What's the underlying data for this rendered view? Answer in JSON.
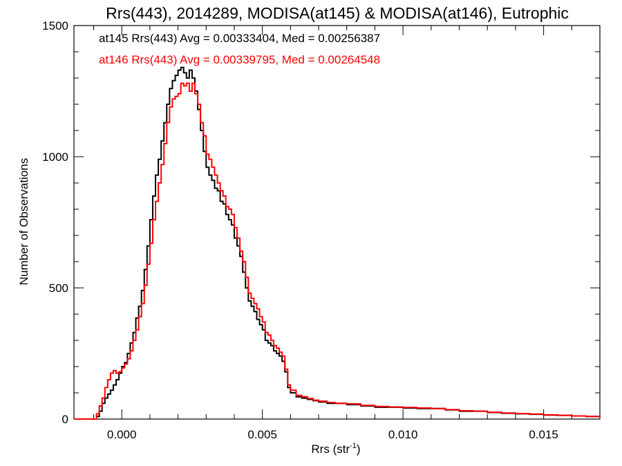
{
  "chart_data": {
    "type": "line",
    "style": "histogram-step",
    "title": "Rrs(443), 2014289, MODISA(at145) & MODISA(at146), Eutrophic",
    "xlabel": "Rrs (str",
    "xlabel_sup": "-1",
    "xlabel_close": ")",
    "ylabel": "Number of Observations",
    "xlim": [
      -0.0017,
      0.017
    ],
    "ylim": [
      0,
      1500
    ],
    "x_ticks": [
      0.0,
      0.005,
      0.01,
      0.015
    ],
    "x_tick_labels": [
      "0.000",
      "0.005",
      "0.010",
      "0.015"
    ],
    "x_minor_step": 0.001,
    "y_ticks": [
      0,
      500,
      1000,
      1500
    ],
    "y_tick_labels": [
      "0",
      "500",
      "1000",
      "1500"
    ],
    "y_minor_step": 100,
    "grid": false,
    "legend_placement": "top-left",
    "series": [
      {
        "name": "at145 Rrs(443) Avg = 0.00333404, Med = 0.00256387",
        "color": "#000000",
        "points": [
          [
            -0.0017,
            0
          ],
          [
            -0.001,
            0
          ],
          [
            -0.0009,
            10
          ],
          [
            -0.0008,
            30
          ],
          [
            -0.0007,
            60
          ],
          [
            -0.0006,
            80
          ],
          [
            -0.0005,
            95
          ],
          [
            -0.0004,
            110
          ],
          [
            -0.0003,
            130
          ],
          [
            -0.0002,
            150
          ],
          [
            -0.0001,
            175
          ],
          [
            0.0,
            200
          ],
          [
            0.0001,
            215
          ],
          [
            0.0002,
            250
          ],
          [
            0.0003,
            290
          ],
          [
            0.0004,
            330
          ],
          [
            0.0005,
            385
          ],
          [
            0.0006,
            430
          ],
          [
            0.0007,
            490
          ],
          [
            0.0008,
            570
          ],
          [
            0.0009,
            660
          ],
          [
            0.001,
            760
          ],
          [
            0.0011,
            850
          ],
          [
            0.0012,
            930
          ],
          [
            0.0013,
            990
          ],
          [
            0.0014,
            1060
          ],
          [
            0.0015,
            1130
          ],
          [
            0.0016,
            1200
          ],
          [
            0.0017,
            1260
          ],
          [
            0.0018,
            1290
          ],
          [
            0.0019,
            1310
          ],
          [
            0.002,
            1330
          ],
          [
            0.0021,
            1340
          ],
          [
            0.0022,
            1320
          ],
          [
            0.0023,
            1300
          ],
          [
            0.0024,
            1330
          ],
          [
            0.0025,
            1300
          ],
          [
            0.0026,
            1250
          ],
          [
            0.0027,
            1180
          ],
          [
            0.0028,
            1100
          ],
          [
            0.0029,
            1020
          ],
          [
            0.003,
            960
          ],
          [
            0.0031,
            930
          ],
          [
            0.0032,
            910
          ],
          [
            0.0033,
            880
          ],
          [
            0.0034,
            870
          ],
          [
            0.0035,
            830
          ],
          [
            0.0036,
            820
          ],
          [
            0.0037,
            780
          ],
          [
            0.0038,
            760
          ],
          [
            0.0039,
            740
          ],
          [
            0.004,
            690
          ],
          [
            0.0041,
            660
          ],
          [
            0.0042,
            620
          ],
          [
            0.0043,
            560
          ],
          [
            0.0044,
            500
          ],
          [
            0.0045,
            450
          ],
          [
            0.0046,
            430
          ],
          [
            0.0047,
            410
          ],
          [
            0.0048,
            380
          ],
          [
            0.0049,
            360
          ],
          [
            0.005,
            340
          ],
          [
            0.0051,
            300
          ],
          [
            0.0052,
            290
          ],
          [
            0.0053,
            280
          ],
          [
            0.0054,
            260
          ],
          [
            0.0055,
            250
          ],
          [
            0.0056,
            240
          ],
          [
            0.0057,
            220
          ],
          [
            0.0058,
            180
          ],
          [
            0.0059,
            120
          ],
          [
            0.006,
            100
          ],
          [
            0.0062,
            85
          ],
          [
            0.0064,
            80
          ],
          [
            0.0066,
            75
          ],
          [
            0.0068,
            70
          ],
          [
            0.007,
            65
          ],
          [
            0.0073,
            60
          ],
          [
            0.0076,
            60
          ],
          [
            0.008,
            55
          ],
          [
            0.0085,
            50
          ],
          [
            0.009,
            45
          ],
          [
            0.0095,
            45
          ],
          [
            0.01,
            42
          ],
          [
            0.0105,
            40
          ],
          [
            0.011,
            40
          ],
          [
            0.0115,
            35
          ],
          [
            0.012,
            30
          ],
          [
            0.0125,
            30
          ],
          [
            0.013,
            25
          ],
          [
            0.0135,
            22
          ],
          [
            0.014,
            20
          ],
          [
            0.0145,
            18
          ],
          [
            0.015,
            15
          ],
          [
            0.0155,
            14
          ],
          [
            0.016,
            12
          ],
          [
            0.0165,
            10
          ],
          [
            0.017,
            8
          ]
        ]
      },
      {
        "name": "at146 Rrs(443) Avg = 0.00339795, Med = 0.00264548",
        "color": "#ff0000",
        "points": [
          [
            -0.0017,
            0
          ],
          [
            -0.001,
            0
          ],
          [
            -0.0009,
            20
          ],
          [
            -0.0008,
            50
          ],
          [
            -0.0007,
            80
          ],
          [
            -0.0006,
            120
          ],
          [
            -0.0005,
            150
          ],
          [
            -0.0004,
            175
          ],
          [
            -0.0003,
            185
          ],
          [
            -0.0002,
            175
          ],
          [
            -0.0001,
            180
          ],
          [
            0.0,
            195
          ],
          [
            0.0001,
            210
          ],
          [
            0.0002,
            230
          ],
          [
            0.0003,
            260
          ],
          [
            0.0004,
            300
          ],
          [
            0.0005,
            340
          ],
          [
            0.0006,
            390
          ],
          [
            0.0007,
            440
          ],
          [
            0.0008,
            510
          ],
          [
            0.0009,
            590
          ],
          [
            0.001,
            670
          ],
          [
            0.0011,
            760
          ],
          [
            0.0012,
            830
          ],
          [
            0.0013,
            900
          ],
          [
            0.0014,
            970
          ],
          [
            0.0015,
            1050
          ],
          [
            0.0016,
            1130
          ],
          [
            0.0017,
            1190
          ],
          [
            0.0018,
            1220
          ],
          [
            0.0019,
            1230
          ],
          [
            0.002,
            1240
          ],
          [
            0.0021,
            1280
          ],
          [
            0.0022,
            1270
          ],
          [
            0.0023,
            1280
          ],
          [
            0.0024,
            1250
          ],
          [
            0.0025,
            1280
          ],
          [
            0.0026,
            1240
          ],
          [
            0.0027,
            1200
          ],
          [
            0.0028,
            1130
          ],
          [
            0.0029,
            1080
          ],
          [
            0.003,
            1010
          ],
          [
            0.0031,
            990
          ],
          [
            0.0032,
            960
          ],
          [
            0.0033,
            930
          ],
          [
            0.0034,
            900
          ],
          [
            0.0035,
            870
          ],
          [
            0.0036,
            850
          ],
          [
            0.0037,
            810
          ],
          [
            0.0038,
            800
          ],
          [
            0.0039,
            780
          ],
          [
            0.004,
            730
          ],
          [
            0.0041,
            690
          ],
          [
            0.0042,
            640
          ],
          [
            0.0043,
            600
          ],
          [
            0.0044,
            540
          ],
          [
            0.0045,
            480
          ],
          [
            0.0046,
            460
          ],
          [
            0.0047,
            440
          ],
          [
            0.0048,
            420
          ],
          [
            0.0049,
            390
          ],
          [
            0.005,
            370
          ],
          [
            0.0051,
            330
          ],
          [
            0.0052,
            320
          ],
          [
            0.0053,
            300
          ],
          [
            0.0054,
            280
          ],
          [
            0.0055,
            270
          ],
          [
            0.0056,
            255
          ],
          [
            0.0057,
            240
          ],
          [
            0.0058,
            190
          ],
          [
            0.0059,
            130
          ],
          [
            0.006,
            110
          ],
          [
            0.0062,
            90
          ],
          [
            0.0064,
            85
          ],
          [
            0.0066,
            78
          ],
          [
            0.0068,
            72
          ],
          [
            0.007,
            68
          ],
          [
            0.0073,
            63
          ],
          [
            0.0076,
            60
          ],
          [
            0.008,
            58
          ],
          [
            0.0085,
            52
          ],
          [
            0.009,
            48
          ],
          [
            0.0095,
            46
          ],
          [
            0.01,
            44
          ],
          [
            0.0105,
            42
          ],
          [
            0.011,
            40
          ],
          [
            0.0115,
            36
          ],
          [
            0.012,
            32
          ],
          [
            0.0125,
            30
          ],
          [
            0.013,
            26
          ],
          [
            0.0135,
            23
          ],
          [
            0.014,
            21
          ],
          [
            0.0145,
            19
          ],
          [
            0.015,
            16
          ],
          [
            0.0155,
            14
          ],
          [
            0.016,
            12
          ],
          [
            0.0165,
            10
          ],
          [
            0.017,
            8
          ]
        ]
      }
    ]
  }
}
